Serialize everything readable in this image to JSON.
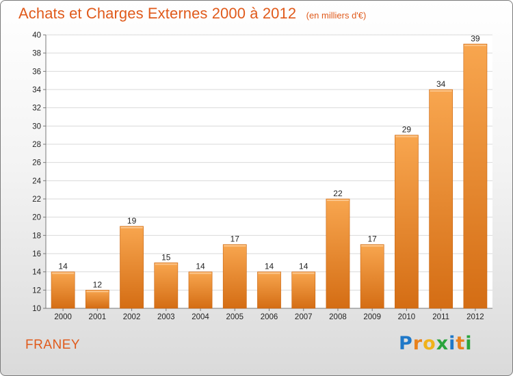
{
  "chart_data": {
    "type": "bar",
    "title": "Achats et Charges Externes 2000 à 2012",
    "subtitle": "(en milliers d'€)",
    "categories": [
      "2000",
      "2001",
      "2002",
      "2003",
      "2004",
      "2005",
      "2006",
      "2007",
      "2008",
      "2009",
      "2010",
      "2011",
      "2012"
    ],
    "values": [
      14,
      12,
      19,
      15,
      14,
      17,
      14,
      14,
      22,
      17,
      29,
      34,
      39
    ],
    "ylim": [
      10,
      40
    ],
    "yticks": [
      10,
      12,
      14,
      16,
      18,
      20,
      22,
      24,
      26,
      28,
      30,
      32,
      34,
      36,
      38,
      40
    ],
    "grid": true,
    "legend": "none",
    "bar_color": "#f39a3d"
  },
  "footer": {
    "place": "FRANEY",
    "logo_text": "Proxiti"
  },
  "logo_letters": [
    {
      "char": "P",
      "color": "#1f78c8"
    },
    {
      "char": "r",
      "color": "#e8811c"
    },
    {
      "char": "o",
      "color": "#f0b21a"
    },
    {
      "char": "x",
      "color": "#2aa43c"
    },
    {
      "char": "i",
      "color": "#1f78c8"
    },
    {
      "char": "t",
      "color": "#e8811c"
    },
    {
      "char": "i",
      "color": "#2aa43c"
    }
  ]
}
